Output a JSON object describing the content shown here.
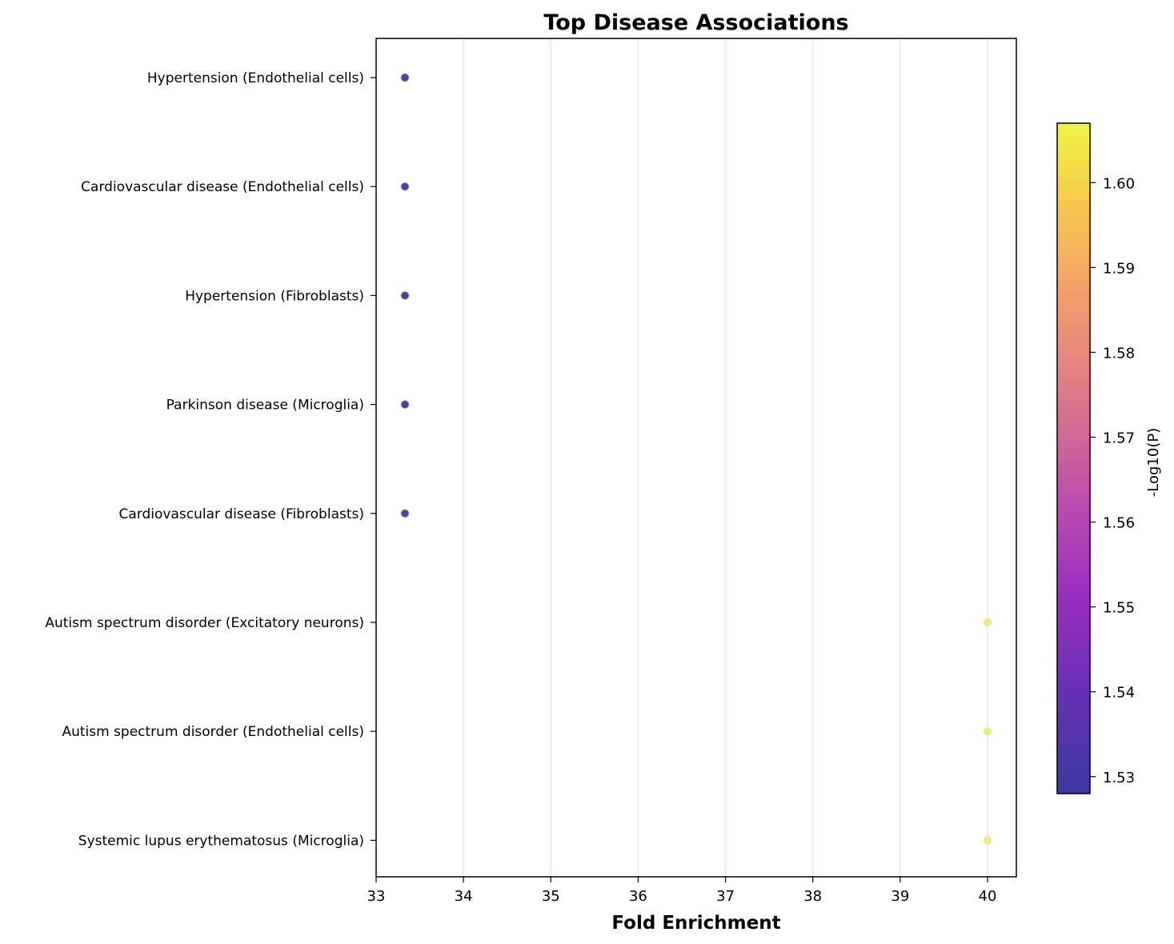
{
  "chart_data": {
    "type": "scatter",
    "title": "Top Disease Associations",
    "xlabel": "Fold Enrichment",
    "ylabel": "",
    "xlim": [
      33,
      40.33
    ],
    "xticks": [
      33,
      34,
      35,
      36,
      37,
      38,
      39,
      40
    ],
    "grid": "x",
    "categories": [
      "Hypertension (Endothelial cells)",
      "Cardiovascular disease (Endothelial cells)",
      "Hypertension (Fibroblasts)",
      "Parkinson disease (Microglia)",
      "Cardiovascular disease (Fibroblasts)",
      "Autism spectrum disorder (Excitatory neurons)",
      "Autism spectrum disorder (Endothelial cells)",
      "Systemic lupus erythematosus (Microglia)"
    ],
    "points": [
      {
        "category": "Hypertension (Endothelial cells)",
        "fold_enrichment": 33.33,
        "neg_log10_p": 1.528
      },
      {
        "category": "Cardiovascular disease (Endothelial cells)",
        "fold_enrichment": 33.33,
        "neg_log10_p": 1.528
      },
      {
        "category": "Hypertension (Fibroblasts)",
        "fold_enrichment": 33.33,
        "neg_log10_p": 1.528
      },
      {
        "category": "Parkinson disease (Microglia)",
        "fold_enrichment": 33.33,
        "neg_log10_p": 1.528
      },
      {
        "category": "Cardiovascular disease (Fibroblasts)",
        "fold_enrichment": 33.33,
        "neg_log10_p": 1.528
      },
      {
        "category": "Autism spectrum disorder (Excitatory neurons)",
        "fold_enrichment": 40.0,
        "neg_log10_p": 1.607
      },
      {
        "category": "Autism spectrum disorder (Endothelial cells)",
        "fold_enrichment": 40.0,
        "neg_log10_p": 1.607
      },
      {
        "category": "Systemic lupus erythematosus (Microglia)",
        "fold_enrichment": 40.0,
        "neg_log10_p": 1.607
      }
    ],
    "colorbar": {
      "label": "-Log10(P)",
      "colormap": "plasma",
      "range": [
        1.528,
        1.607
      ],
      "ticks": [
        1.53,
        1.54,
        1.55,
        1.56,
        1.57,
        1.58,
        1.59,
        1.6
      ],
      "tick_labels": [
        "1.53",
        "1.54",
        "1.55",
        "1.56",
        "1.57",
        "1.58",
        "1.59",
        "1.60"
      ],
      "low_color": "#3d3aa0",
      "mid_color": "#a938bd",
      "high_color": "#f0f445"
    }
  }
}
